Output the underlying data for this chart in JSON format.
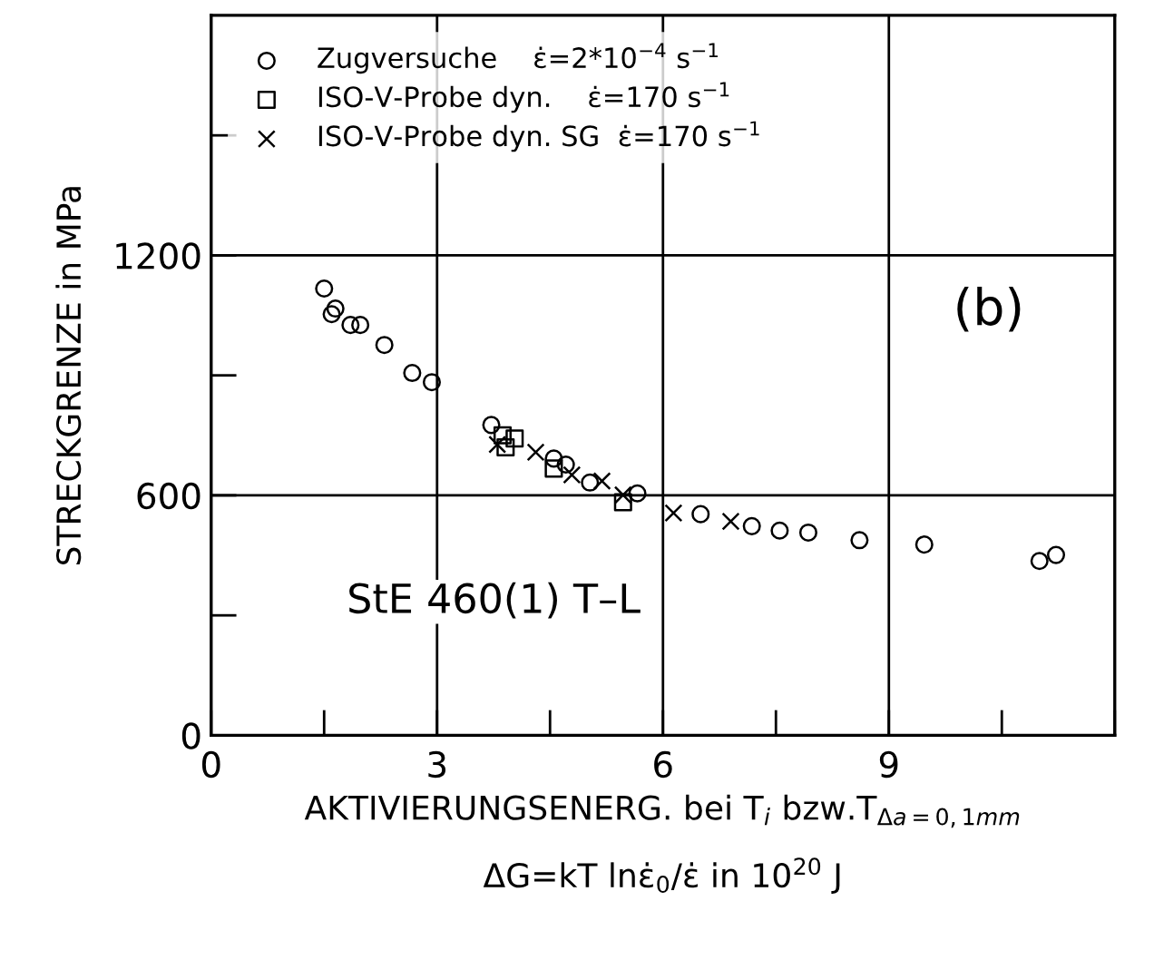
{
  "chart_data": {
    "type": "scatter",
    "xlabel": "AKTIVIERUNGSENERG. bei T$_{i}$ bzw.T$_{Δa=0,1mm}$\nΔG=kT lnε̇$_{0}$/ε̇ in 10$^{20}$ J",
    "ylabel": "STRECKGRENZE in MPa",
    "annotations": [
      "(b)",
      "StE 460(1) T–L"
    ],
    "series": [
      {
        "name": "Zugversuche    ε̇=2*10$^{−4}$ s$^{−1}$",
        "color": "#000000",
        "marker": "circle",
        "x": [
          1.5,
          1.65,
          1.6,
          1.85,
          1.98,
          2.3,
          2.67,
          2.93,
          3.72,
          4.55,
          4.71,
          5.03,
          5.66,
          6.5,
          7.18,
          7.55,
          7.93,
          8.61,
          9.47,
          11.0,
          11.22
        ],
        "values": [
          1117,
          1067,
          1053,
          1026,
          1026,
          976,
          906,
          883,
          776,
          692,
          677,
          632,
          605,
          553,
          523,
          512,
          507,
          488,
          477,
          436,
          451
        ]
      },
      {
        "name": "ISO-V-Probe dyn.    ε̇=170 s$^{−1}$",
        "color": "#000000",
        "marker": "square",
        "x": [
          3.87,
          4.03,
          3.91,
          4.55,
          5.47
        ],
        "values": [
          750,
          742,
          720,
          667,
          583
        ]
      },
      {
        "name": "ISO-V-Probe dyn. SG  ε̇=170 s$^{−1}$",
        "color": "#000000",
        "marker": "cross",
        "x": [
          3.8,
          4.31,
          4.79,
          5.19,
          5.47,
          6.14,
          6.9
        ],
        "values": [
          727,
          708,
          651,
          636,
          601,
          556,
          535
        ]
      }
    ],
    "xlim": [
      0,
      12
    ],
    "ylim": [
      0,
      1800
    ],
    "xticks": [
      0,
      {
        "value": 1.5,
        "label": null
      },
      3,
      {
        "value": 4.5,
        "label": null
      },
      6,
      {
        "value": 7.5,
        "label": null
      },
      9,
      {
        "value": 10.5,
        "label": null
      },
      {
        "value": 12,
        "label": null
      }
    ],
    "yticks": [
      0,
      {
        "value": 300,
        "label": null
      },
      600,
      {
        "value": 900,
        "label": null
      },
      1200,
      {
        "value": 1500,
        "label": null
      }
    ],
    "grid": true,
    "legend": "top left"
  }
}
